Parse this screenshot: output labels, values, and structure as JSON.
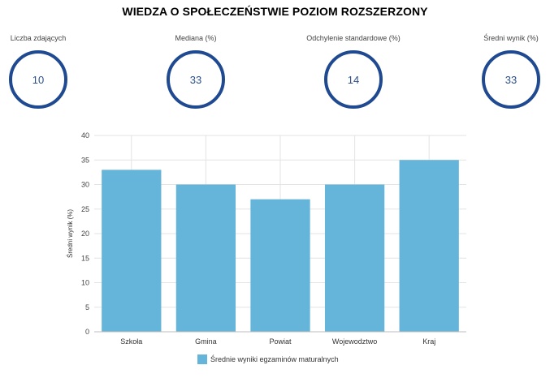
{
  "title": "WIEDZA O SPOŁECZEŃSTWIE POZIOM ROZSZERZONY",
  "stats": [
    {
      "label": "Liczba zdających",
      "value": "10"
    },
    {
      "label": "Mediana (%)",
      "value": "33"
    },
    {
      "label": "Odchylenie standardowe (%)",
      "value": "14"
    },
    {
      "label": "Średni wynik (%)",
      "value": "33"
    }
  ],
  "colors": {
    "bar": "#65b5db",
    "ring": "#1f4a91",
    "grid": "#e3e3e3"
  },
  "chart_data": {
    "type": "bar",
    "categories": [
      "Szkoła",
      "Gmina",
      "Powiat",
      "Wojewodztwo",
      "Kraj"
    ],
    "series": [
      {
        "name": "Średnie wyniki egzaminów maturalnych",
        "values": [
          33,
          30,
          27,
          30,
          35
        ]
      }
    ],
    "ylabel": "Średni wynik (%)",
    "xlabel": "",
    "ylim": [
      0,
      40
    ],
    "yticks": [
      0,
      5,
      10,
      15,
      20,
      25,
      30,
      35,
      40
    ],
    "grid": true,
    "legend": "bottom"
  }
}
